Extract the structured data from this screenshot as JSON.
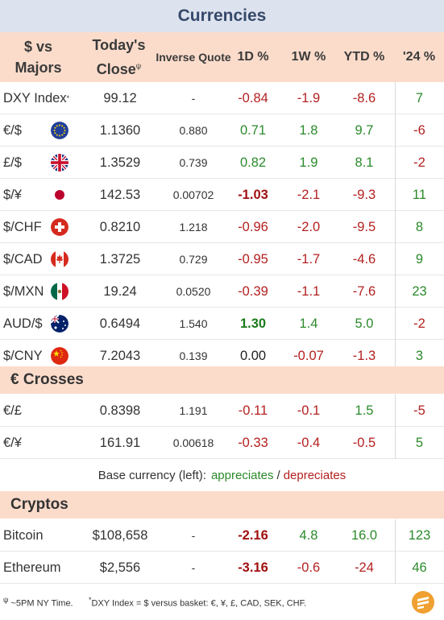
{
  "title": "Currencies",
  "header": {
    "col_pair": "$ vs Majors",
    "col_close": "Today's Close",
    "col_close_mark": "ψ",
    "col_inverse": "Inverse Quote",
    "col_1d": "1D %",
    "col_1w": "1W %",
    "col_ytd": "YTD %",
    "col_24": "'24 %"
  },
  "majors": [
    {
      "name": "DXY Index",
      "mark": "*",
      "close": "99.12",
      "inverse": "-",
      "d1": "-0.84",
      "w1": "-1.9",
      "ytd": "-8.6",
      "y24": "7",
      "flag": ""
    },
    {
      "name": "€/$",
      "close": "1.1360",
      "inverse": "0.880",
      "d1": "0.71",
      "w1": "1.8",
      "ytd": "9.7",
      "y24": "-6",
      "flag": "eu-flag-icon"
    },
    {
      "name": "£/$",
      "close": "1.3529",
      "inverse": "0.739",
      "d1": "0.82",
      "w1": "1.9",
      "ytd": "8.1",
      "y24": "-2",
      "flag": "uk-flag-icon"
    },
    {
      "name": "$/¥",
      "close": "142.53",
      "inverse": "0.00702",
      "d1": "-1.03",
      "w1": "-2.1",
      "ytd": "-9.3",
      "y24": "11",
      "flag": "japan-flag-icon"
    },
    {
      "name": "$/CHF",
      "close": "0.8210",
      "inverse": "1.218",
      "d1": "-0.96",
      "w1": "-2.0",
      "ytd": "-9.5",
      "y24": "8",
      "flag": "swiss-flag-icon"
    },
    {
      "name": "$/CAD",
      "close": "1.3725",
      "inverse": "0.729",
      "d1": "-0.95",
      "w1": "-1.7",
      "ytd": "-4.6",
      "y24": "9",
      "flag": "canada-flag-icon"
    },
    {
      "name": "$/MXN",
      "close": "19.24",
      "inverse": "0.0520",
      "d1": "-0.39",
      "w1": "-1.1",
      "ytd": "-7.6",
      "y24": "23",
      "flag": "mexico-flag-icon"
    },
    {
      "name": "AUD/$",
      "close": "0.6494",
      "inverse": "1.540",
      "d1": "1.30",
      "w1": "1.4",
      "ytd": "5.0",
      "y24": "-2",
      "flag": "australia-flag-icon"
    },
    {
      "name": "$/CNY",
      "close": "7.2043",
      "inverse": "0.139",
      "d1": "0.00",
      "w1": "-0.07",
      "ytd": "-1.3",
      "y24": "3",
      "flag": "china-flag-icon"
    }
  ],
  "crosses_title": "€ Crosses",
  "crosses": [
    {
      "name": "€/£",
      "close": "0.8398",
      "inverse": "1.191",
      "d1": "-0.11",
      "w1": "-0.1",
      "ytd": "1.5",
      "y24": "-5"
    },
    {
      "name": "€/¥",
      "close": "161.91",
      "inverse": "0.00618",
      "d1": "-0.33",
      "w1": "-0.4",
      "ytd": "-0.5",
      "y24": "5"
    }
  ],
  "legend": {
    "prefix": "Base currency (left):",
    "appreciates": "appreciates",
    "sep": "/",
    "depreciates": "depreciates"
  },
  "cryptos_title": "Cryptos",
  "cryptos": [
    {
      "name": "Bitcoin",
      "close": "$108,658",
      "inverse": "-",
      "d1": "-2.16",
      "w1": "4.8",
      "ytd": "16.0",
      "y24": "123"
    },
    {
      "name": "Ethereum",
      "close": "$2,556",
      "inverse": "-",
      "d1": "-3.16",
      "w1": "-0.6",
      "ytd": "-24",
      "y24": "46"
    }
  ],
  "footer": {
    "note1_mark": "ψ",
    "note1": "~5PM NY Time.",
    "note2_mark": "*",
    "note2": "DXY Index = $ versus basket: €, ¥, £, CAD, SEK, CHF."
  },
  "colors": {
    "positive": "#2b8a2b",
    "negative": "#b42020",
    "title_bg": "#dde3ee",
    "header_bg": "#fbdccb",
    "logo": "#f0a030"
  }
}
